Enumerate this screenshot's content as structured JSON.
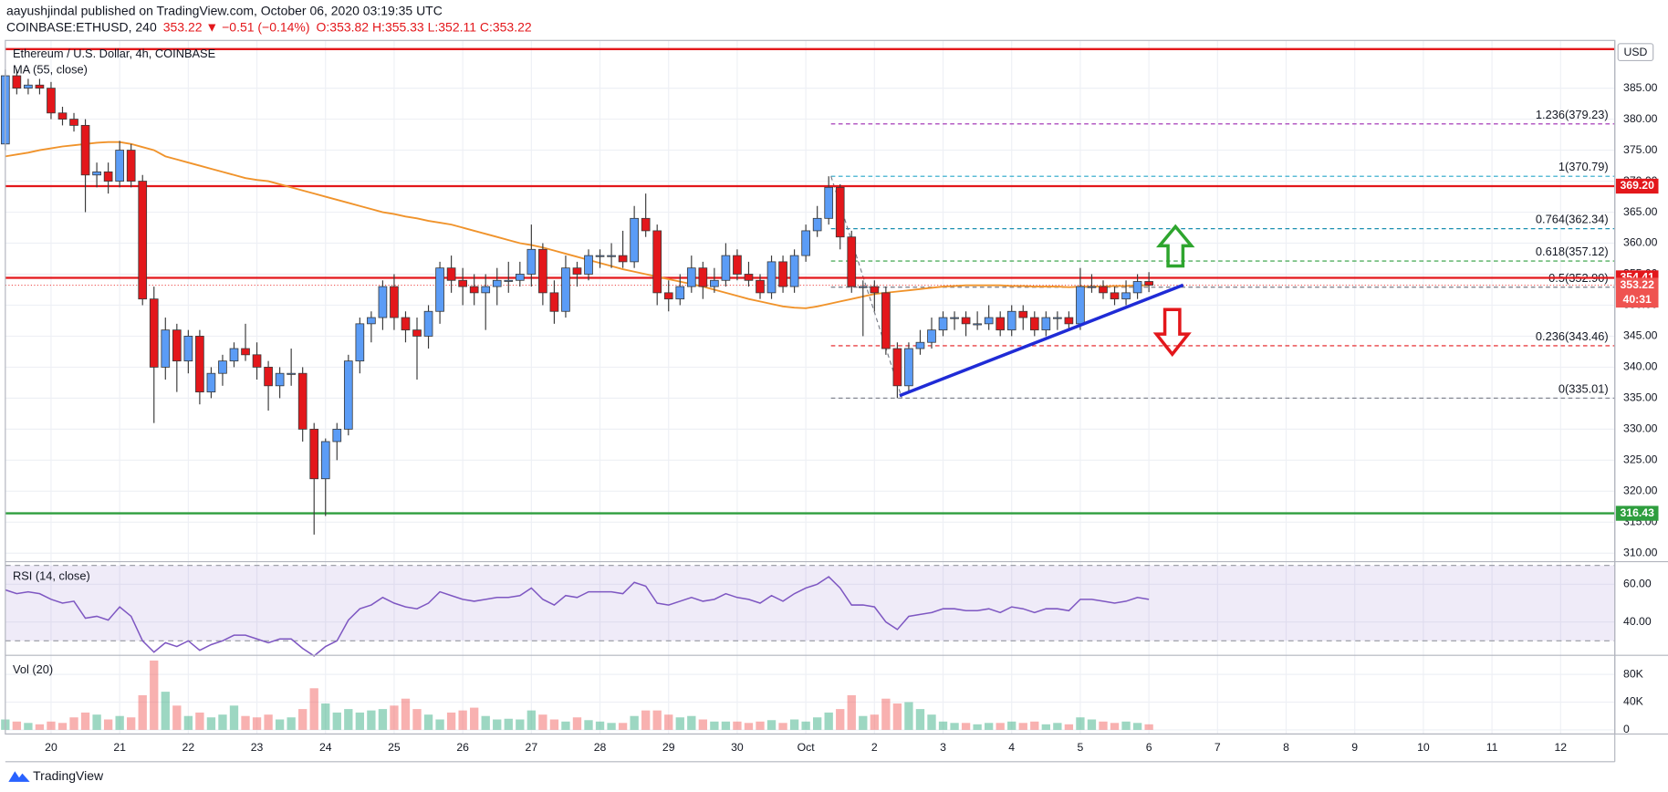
{
  "header": {
    "publisher_line": "aayushjindal published on TradingView.com, October 06, 2020 03:19:35 UTC",
    "symbol": "COINBASE:ETHUSD, 240",
    "change": "353.22 ▼ −0.51 (−0.14%)",
    "ohlc": "O:353.82 H:355.33 L:352.11 C:353.22"
  },
  "footer": {
    "brand": "TradingView"
  },
  "chart_data": {
    "type": "candlestick",
    "title": "Ethereum / U.S. Dollar, 4h, COINBASE",
    "currency": "USD",
    "up_color": "#5b9cf6",
    "down_color": "#e3171b",
    "open": [
      376,
      387,
      385,
      385.5,
      385,
      381,
      380,
      379,
      371,
      371.5,
      370,
      375,
      370,
      351,
      340,
      346,
      341,
      345,
      336,
      339,
      341,
      343,
      342,
      340,
      337,
      339,
      339,
      330,
      322,
      328,
      330,
      341,
      347,
      348,
      353,
      348,
      346,
      345,
      349,
      356,
      354,
      353,
      352,
      353,
      354,
      354,
      355,
      359,
      352,
      349,
      356,
      355,
      358,
      358,
      358,
      357,
      364,
      362,
      352,
      351,
      353,
      356,
      353,
      354,
      358,
      355,
      354,
      352,
      357,
      353,
      358,
      362,
      364,
      369,
      361,
      353,
      353,
      352,
      343,
      337,
      343,
      344,
      346,
      348,
      348,
      347,
      347,
      348,
      346,
      349,
      348,
      346,
      348,
      348,
      347,
      353,
      353,
      352,
      351,
      352,
      353.82
    ],
    "high": [
      388,
      388,
      386.5,
      386.5,
      386,
      382,
      381,
      380,
      373,
      373,
      376.5,
      376,
      371,
      353,
      348,
      347,
      346,
      346,
      340,
      342,
      344,
      347,
      344,
      341,
      340,
      343,
      340,
      331,
      328.5,
      331,
      342,
      348,
      349,
      354,
      355,
      349,
      348,
      350,
      357,
      358,
      356,
      355,
      355,
      356,
      357,
      357,
      363,
      360,
      354,
      358,
      357,
      359,
      359,
      360,
      362,
      366,
      368,
      363,
      354,
      355,
      358,
      357,
      356,
      360,
      359,
      357,
      355,
      358,
      358,
      359,
      363,
      366,
      370.79,
      369.5,
      362,
      354,
      354,
      353,
      344,
      344,
      346,
      348,
      349,
      349,
      349,
      349,
      350,
      349,
      350,
      350,
      349,
      349,
      349,
      349,
      356,
      355,
      354,
      353,
      354,
      355,
      355.33
    ],
    "low": [
      375,
      384,
      384,
      384,
      380,
      379,
      378,
      365,
      369,
      368,
      369,
      369,
      350,
      331,
      338,
      336,
      339,
      334,
      335,
      337,
      340,
      341,
      338,
      333,
      335,
      337,
      328,
      313,
      316,
      325,
      329,
      339,
      344,
      346,
      346,
      344,
      338,
      343,
      347,
      352,
      350,
      350,
      346,
      350,
      352,
      353,
      353,
      350,
      347,
      348,
      353,
      354,
      356,
      356,
      356,
      356,
      361,
      350,
      349,
      350,
      352,
      351,
      352,
      353,
      354,
      353,
      351,
      351,
      352,
      352,
      357,
      361,
      363,
      359,
      352,
      345,
      349,
      342,
      335.01,
      336,
      342,
      343,
      345,
      346,
      345,
      346,
      346,
      345,
      345,
      346,
      345,
      345,
      346,
      346,
      346,
      352,
      351,
      350,
      350,
      351,
      352.11
    ],
    "close": [
      387,
      385,
      385.5,
      385,
      381,
      380,
      379,
      371,
      371.5,
      370,
      375,
      370,
      351,
      340,
      346,
      341,
      345,
      336,
      339,
      341,
      343,
      342,
      340,
      337,
      339,
      339,
      330,
      322,
      328,
      330,
      341,
      347,
      348,
      353,
      348,
      346,
      345,
      349,
      356,
      354,
      353,
      352,
      353,
      354,
      354,
      355,
      359,
      352,
      349,
      356,
      355,
      358,
      358,
      358,
      357,
      364,
      362,
      352,
      351,
      353,
      356,
      353,
      354,
      358,
      355,
      354,
      352,
      357,
      353,
      358,
      362,
      364,
      369,
      361,
      353,
      353,
      352,
      343,
      337,
      343,
      344,
      346,
      348,
      348,
      347,
      347,
      348,
      346,
      349,
      348,
      346,
      348,
      348,
      347,
      353,
      353,
      352,
      351,
      352,
      353.82,
      353.22
    ],
    "ma": {
      "name": "MA (55, close)",
      "color": "#f0932b",
      "values": [
        374,
        374.3,
        374.6,
        375,
        375.3,
        375.6,
        375.8,
        376,
        376.2,
        376.3,
        376.3,
        376,
        375.5,
        375,
        374,
        373.5,
        373,
        372.5,
        372,
        371.5,
        371,
        370.5,
        370.2,
        370,
        369.5,
        369,
        368.5,
        368,
        367.5,
        367,
        366.5,
        366,
        365.5,
        365,
        364.7,
        364.3,
        364,
        363.6,
        363.3,
        363,
        362.5,
        362,
        361.5,
        361,
        360.5,
        360,
        359.7,
        359.3,
        358.8,
        358.3,
        357.8,
        357.3,
        356.8,
        356.3,
        355.8,
        355.4,
        355,
        354.6,
        354.2,
        353.8,
        353.4,
        353,
        352.5,
        352,
        351.5,
        351,
        350.6,
        350.2,
        349.8,
        349.6,
        349.5,
        349.8,
        350.2,
        350.6,
        351,
        351.4,
        351.8,
        352,
        352.2,
        352.4,
        352.6,
        352.8,
        353,
        353.1,
        353.2,
        353.2,
        353.2,
        353.2,
        353.1,
        353.1,
        353,
        353,
        353,
        352.9,
        353,
        353,
        353,
        353.1,
        353.1,
        353.2,
        353.2
      ]
    },
    "xlim": [
      0,
      140.74
    ],
    "xticks": [
      {
        "value": 4,
        "label": "20"
      },
      {
        "value": 10,
        "label": "21"
      },
      {
        "value": 16,
        "label": "22"
      },
      {
        "value": 22,
        "label": "23"
      },
      {
        "value": 28,
        "label": "24"
      },
      {
        "value": 34,
        "label": "25"
      },
      {
        "value": 40,
        "label": "26"
      },
      {
        "value": 46,
        "label": "27"
      },
      {
        "value": 52,
        "label": "28"
      },
      {
        "value": 58,
        "label": "29"
      },
      {
        "value": 64,
        "label": "30"
      },
      {
        "value": 70,
        "label": "Oct"
      },
      {
        "value": 76,
        "label": "2"
      },
      {
        "value": 82,
        "label": "3"
      },
      {
        "value": 88,
        "label": "4"
      },
      {
        "value": 94,
        "label": "5"
      },
      {
        "value": 100,
        "label": "6"
      },
      {
        "value": 106,
        "label": "7"
      },
      {
        "value": 112,
        "label": "8"
      },
      {
        "value": 118,
        "label": "9"
      },
      {
        "value": 124,
        "label": "10"
      },
      {
        "value": 130,
        "label": "11"
      },
      {
        "value": 136,
        "label": "12"
      }
    ],
    "ylim": [
      308.8,
      392.7
    ],
    "yticks": [
      {
        "value": 310,
        "label": "310.00"
      },
      {
        "value": 315,
        "label": "315.00"
      },
      {
        "value": 320,
        "label": "320.00"
      },
      {
        "value": 325,
        "label": "325.00"
      },
      {
        "value": 330,
        "label": "330.00"
      },
      {
        "value": 335,
        "label": "335.00"
      },
      {
        "value": 340,
        "label": "340.00"
      },
      {
        "value": 345,
        "label": "345.00"
      },
      {
        "value": 350,
        "label": "350.00"
      },
      {
        "value": 355,
        "label": "355.00"
      },
      {
        "value": 360,
        "label": "360.00"
      },
      {
        "value": 365,
        "label": "365.00"
      },
      {
        "value": 370,
        "label": "370.00"
      },
      {
        "value": 375,
        "label": "375.00"
      },
      {
        "value": 380,
        "label": "380.00"
      },
      {
        "value": 385,
        "label": "385.00"
      }
    ],
    "grid": true,
    "levels": [
      {
        "price": 391.3,
        "color": "#e3171b"
      },
      {
        "price": 369.2,
        "label": "369.20",
        "color": "#e3171b"
      },
      {
        "price": 354.41,
        "label": "354.41",
        "color": "#e3171b"
      },
      {
        "price": 316.43,
        "label": "316.43",
        "color": "#2e9e3e"
      }
    ],
    "last_price": {
      "price": 353.22,
      "label": "353.22",
      "color": "#ef5350",
      "countdown": "40:31"
    },
    "fib": {
      "anchors_x": [
        72.2,
        78.4
      ],
      "levels": [
        {
          "label": "1.236(379.23)",
          "price": 379.23,
          "color": "#9c27b0"
        },
        {
          "label": "1(370.79)",
          "price": 370.79,
          "color": "#26a6c9"
        },
        {
          "label": "0.764(362.34)",
          "price": 362.34,
          "color": "#1a8fb0"
        },
        {
          "label": "0.618(357.12)",
          "price": 357.12,
          "color": "#2e9e3e"
        },
        {
          "label": "0.5(352.90)",
          "price": 352.9,
          "color": "#787b86"
        },
        {
          "label": "0.236(343.46)",
          "price": 343.46,
          "color": "#e3171b"
        },
        {
          "label": "0(335.01)",
          "price": 335.01,
          "color": "#787b86"
        }
      ]
    },
    "trendline": {
      "x": [
        78.2,
        103
      ],
      "y": [
        335.4,
        353.25
      ],
      "color": "#1f2bd6"
    },
    "rsi": {
      "name": "RSI (14, close)",
      "color": "#7e57c2",
      "ylim": [
        22.9,
        71.4
      ],
      "yticks": [
        {
          "value": 40,
          "label": "40.00"
        },
        {
          "value": 60,
          "label": "60.00"
        }
      ],
      "bands": [
        30,
        70
      ],
      "values": [
        57,
        55,
        56,
        55,
        52,
        50,
        51,
        42,
        43,
        41,
        48,
        43,
        30,
        24,
        29,
        27,
        30,
        25,
        28,
        30,
        33,
        33,
        31,
        29,
        31,
        31,
        26,
        22,
        27,
        30,
        41,
        47,
        49,
        53,
        50,
        48,
        47,
        50,
        56,
        54,
        52,
        51,
        52,
        53,
        53,
        54,
        58,
        52,
        49,
        54,
        53,
        56,
        56,
        56,
        55,
        61,
        59,
        50,
        49,
        51,
        53,
        51,
        52,
        55,
        53,
        52,
        50,
        54,
        51,
        55,
        58,
        60,
        64,
        58,
        49,
        49,
        48,
        40,
        36,
        43,
        44,
        45,
        47,
        47,
        46,
        46,
        47,
        45,
        48,
        47,
        45,
        47,
        47,
        46,
        52,
        52,
        51,
        50,
        51,
        53,
        52
      ]
    },
    "volume": {
      "name": "Vol (20)",
      "ylim": [
        -6000,
        106000
      ],
      "yticks": [
        0,
        {
          "value": 40000,
          "label": "40K"
        },
        {
          "value": 80000,
          "label": "80K"
        }
      ],
      "values": [
        15000,
        12000,
        10000,
        8000,
        12000,
        10000,
        18000,
        25000,
        22000,
        15000,
        20000,
        18000,
        50000,
        100000,
        55000,
        35000,
        20000,
        25000,
        18000,
        22000,
        35000,
        20000,
        18000,
        22000,
        15000,
        18000,
        30000,
        60000,
        38000,
        25000,
        30000,
        25000,
        28000,
        30000,
        35000,
        45000,
        30000,
        22000,
        15000,
        25000,
        28000,
        32000,
        20000,
        15000,
        16000,
        15000,
        28000,
        22000,
        15000,
        12000,
        18000,
        14000,
        12000,
        10000,
        10000,
        20000,
        28000,
        28000,
        22000,
        18000,
        20000,
        15000,
        12000,
        12000,
        12000,
        10000,
        12000,
        14000,
        10000,
        15000,
        12000,
        18000,
        25000,
        30000,
        50000,
        20000,
        22000,
        45000,
        38000,
        40000,
        30000,
        22000,
        12000,
        10000,
        10000,
        8000,
        10000,
        10000,
        12000,
        10000,
        12000,
        8000,
        10000,
        8000,
        18000,
        15000,
        12000,
        10000,
        12000,
        10000,
        8000
      ]
    }
  }
}
